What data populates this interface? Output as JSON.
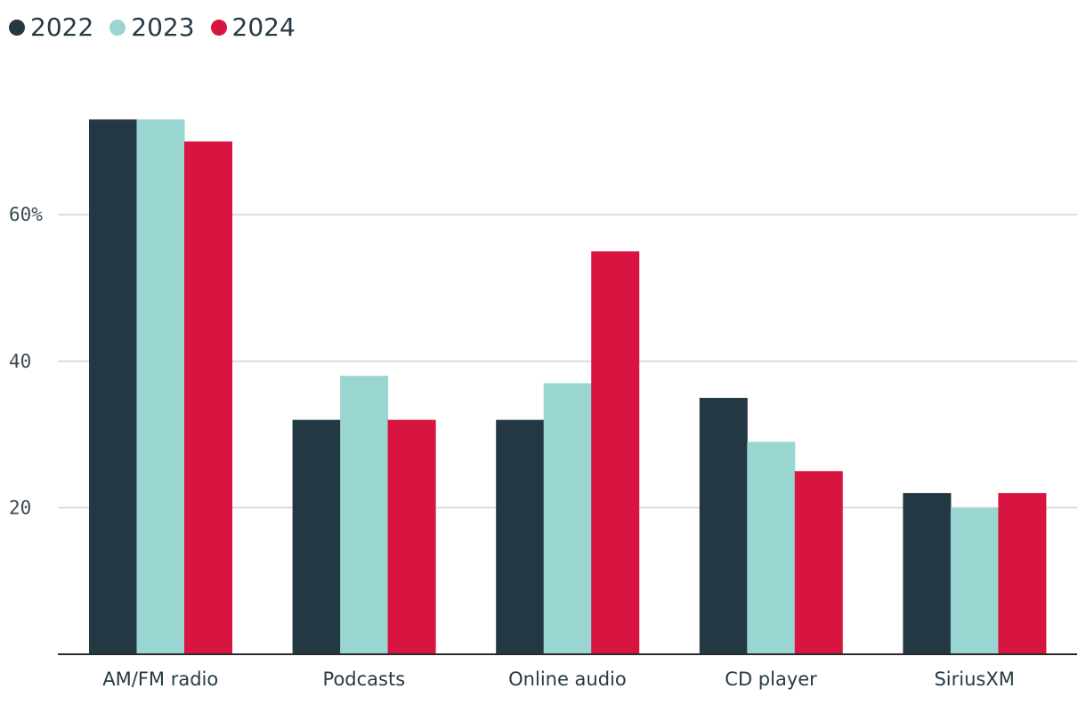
{
  "chart_data": {
    "type": "bar",
    "categories": [
      "AM/FM radio",
      "Podcasts",
      "Online audio",
      "CD player",
      "SiriusXM"
    ],
    "series": [
      {
        "name": "2022",
        "color": "#243843",
        "values": [
          73,
          32,
          32,
          35,
          22
        ]
      },
      {
        "name": "2023",
        "color": "#99d6d2",
        "values": [
          73,
          38,
          37,
          29,
          20
        ]
      },
      {
        "name": "2024",
        "color": "#d81440",
        "values": [
          70,
          32,
          55,
          25,
          22
        ]
      }
    ],
    "yticks": [
      {
        "value": 20,
        "label": "20"
      },
      {
        "value": 40,
        "label": "40"
      },
      {
        "value": 60,
        "label": "60%"
      }
    ],
    "ylim": [
      0,
      80
    ],
    "grid": true,
    "legend_position": "top-left",
    "title": "",
    "xlabel": "",
    "ylabel": ""
  }
}
